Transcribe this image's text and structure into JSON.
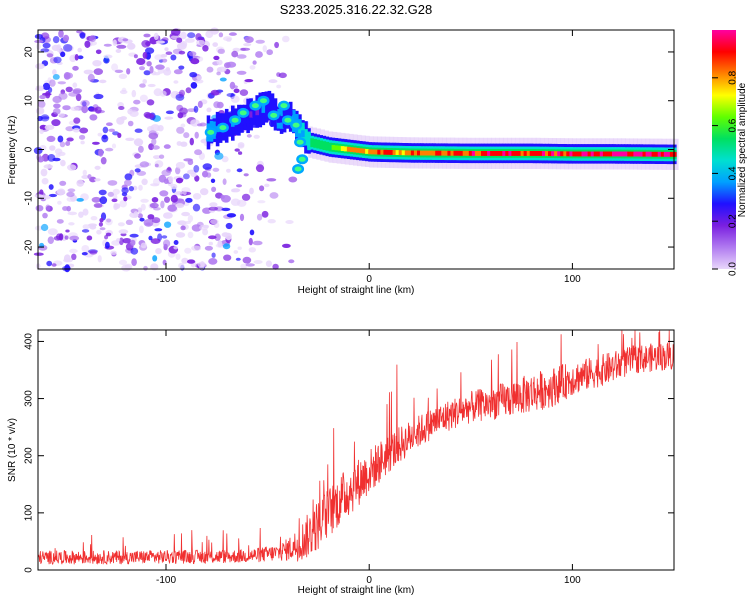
{
  "figure": {
    "title": "S233.2025.316.22.32.G28"
  },
  "chart_data": [
    {
      "type": "heatmap",
      "name": "spectrogram",
      "xlabel": "Height of straight line (km)",
      "ylabel": "Frequency (Hz)",
      "xlim": [
        -163,
        150
      ],
      "ylim": [
        -24.5,
        24.5
      ],
      "xticks": [
        -100,
        0,
        100
      ],
      "xtick_labels": [
        "-100",
        "0",
        "100"
      ],
      "yticks": [
        -20,
        -10,
        0,
        10,
        20
      ],
      "ytick_labels": [
        "-20",
        "-10",
        "0",
        "10",
        "20"
      ],
      "colorbar": {
        "label": "Normalized spectral amplitude",
        "range": [
          0,
          1
        ],
        "ticks": [
          0.0,
          0.2,
          0.4,
          0.6,
          0.8
        ],
        "tick_labels": [
          "0.0",
          "0.2",
          "0.4",
          "0.6",
          "0.8"
        ],
        "colormap": [
          "#e8d6fb",
          "#b07af0",
          "#7a1fe0",
          "#2010ff",
          "#00a0ff",
          "#00e0d0",
          "#00e060",
          "#60ff00",
          "#ffff00",
          "#ff8000",
          "#ff0000",
          "#ff00a0"
        ]
      },
      "ridge": {
        "description_points_x": [
          -80,
          -70,
          -60,
          -50,
          -45,
          -40,
          -35,
          -30,
          -25,
          -20,
          -10,
          0,
          20,
          50,
          80,
          100,
          120,
          150
        ],
        "center_freq_hz": [
          3.5,
          5,
          7,
          9,
          6,
          7,
          4,
          1.5,
          1,
          0.5,
          0,
          -0.5,
          -0.7,
          -0.8,
          -0.8,
          -0.9,
          -0.9,
          -1.0
        ],
        "amplitude": [
          0.35,
          0.3,
          0.3,
          0.3,
          0.35,
          0.3,
          0.4,
          0.5,
          0.55,
          0.6,
          0.75,
          0.8,
          0.82,
          0.85,
          0.88,
          0.9,
          0.92,
          0.9
        ]
      },
      "noise_region_xlim": [
        -163,
        -45
      ]
    },
    {
      "type": "line",
      "name": "snr",
      "xlabel": "Height of straight line (km)",
      "ylabel": "SNR (10 * v/v)",
      "xlim": [
        -163,
        150
      ],
      "ylim": [
        0,
        420
      ],
      "xticks": [
        -100,
        0,
        100
      ],
      "xtick_labels": [
        "-100",
        "0",
        "100"
      ],
      "yticks": [
        0,
        100,
        200,
        300,
        400
      ],
      "ytick_labels": [
        "0",
        "100",
        "200",
        "300",
        "400"
      ],
      "series": [
        {
          "name": "SNR",
          "color": "#f03030",
          "x": [
            -163,
            -140,
            -120,
            -100,
            -80,
            -65,
            -55,
            -45,
            -40,
            -35,
            -30,
            -25,
            -20,
            -15,
            -10,
            -5,
            0,
            10,
            20,
            30,
            40,
            50,
            60,
            70,
            80,
            90,
            100,
            110,
            120,
            130,
            140,
            150
          ],
          "y": [
            22,
            22,
            22,
            23,
            23,
            24,
            26,
            30,
            36,
            45,
            60,
            80,
            100,
            120,
            138,
            155,
            172,
            205,
            232,
            255,
            272,
            285,
            292,
            300,
            310,
            320,
            335,
            345,
            355,
            368,
            372,
            375
          ],
          "noise_amplitude": [
            12,
            12,
            12,
            12,
            12,
            12,
            13,
            15,
            20,
            30,
            40,
            45,
            45,
            45,
            45,
            42,
            40,
            35,
            30,
            28,
            28,
            28,
            30,
            32,
            35,
            35,
            30,
            28,
            28,
            25,
            25,
            25
          ]
        }
      ]
    }
  ]
}
